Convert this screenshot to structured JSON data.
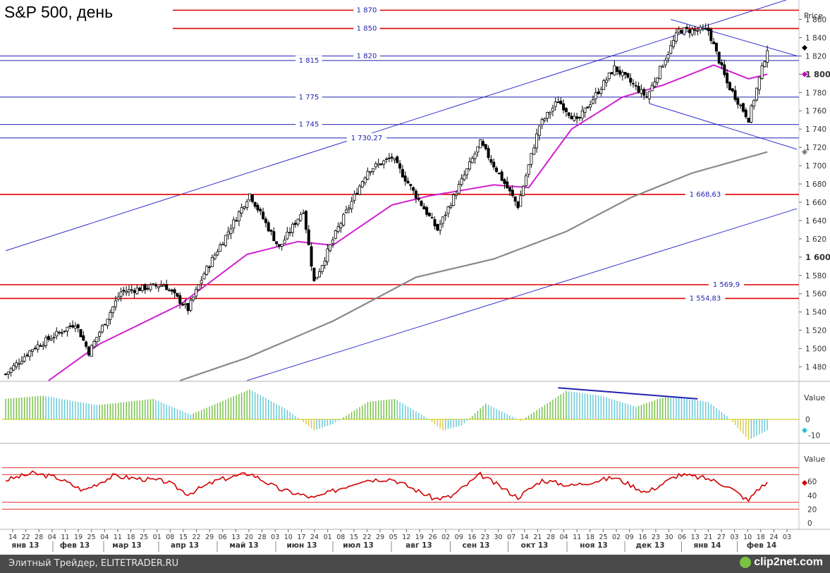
{
  "title": "S&P 500, день",
  "footer": {
    "source": "Элитный Трейдер, ELITETRADER.RU",
    "logo": "clip2net.com"
  },
  "chart_data": [
    {
      "type": "candlestick",
      "ylabel": "Price",
      "ylim": [
        1465,
        1875
      ],
      "y_ticks": [
        "1 480",
        "1 500",
        "1 520",
        "1 540",
        "1 560",
        "1 580",
        "1 600",
        "1 620",
        "1 640",
        "1 660",
        "1 680",
        "1 700",
        "1 720",
        "1 740",
        "1 760",
        "1 780",
        "1 800",
        "1 820",
        "1 840",
        "1 860"
      ],
      "y_ticks_bold": [
        "1 600",
        "1 800"
      ],
      "x_date_ticks": [
        "14",
        "22",
        "28",
        "04",
        "11",
        "19",
        "25",
        "04",
        "11",
        "18",
        "25",
        "01",
        "08",
        "15",
        "22",
        "29",
        "06",
        "13",
        "20",
        "28",
        "03",
        "10",
        "17",
        "24",
        "01",
        "08",
        "15",
        "22",
        "29",
        "05",
        "12",
        "19",
        "26",
        "02",
        "09",
        "16",
        "23",
        "30",
        "07",
        "14",
        "21",
        "28",
        "04",
        "11",
        "18",
        "25",
        "02",
        "09",
        "16",
        "23",
        "30",
        "06",
        "13",
        "21",
        "27",
        "03",
        "10",
        "18",
        "24",
        "03"
      ],
      "x_month_labels": [
        "янв 13",
        "фев 13",
        "мар 13",
        "апр 13",
        "май 13",
        "июн 13",
        "июл 13",
        "авг 13",
        "сен 13",
        "окт 13",
        "ноя 13",
        "дек 13",
        "янв 14",
        "фев 14"
      ],
      "close_anchors": [
        {
          "date": "2013-01-14",
          "value": 1472
        },
        {
          "date": "2013-01-28",
          "value": 1500
        },
        {
          "date": "2013-02-19",
          "value": 1528
        },
        {
          "date": "2013-02-26",
          "value": 1496
        },
        {
          "date": "2013-03-14",
          "value": 1562
        },
        {
          "date": "2013-04-05",
          "value": 1570
        },
        {
          "date": "2013-04-18",
          "value": 1543
        },
        {
          "date": "2013-04-26",
          "value": 1582
        },
        {
          "date": "2013-05-21",
          "value": 1669
        },
        {
          "date": "2013-06-05",
          "value": 1610
        },
        {
          "date": "2013-06-18",
          "value": 1652
        },
        {
          "date": "2013-06-24",
          "value": 1573
        },
        {
          "date": "2013-07-05",
          "value": 1632
        },
        {
          "date": "2013-07-22",
          "value": 1695
        },
        {
          "date": "2013-08-02",
          "value": 1709
        },
        {
          "date": "2013-08-27",
          "value": 1630
        },
        {
          "date": "2013-09-18",
          "value": 1725
        },
        {
          "date": "2013-10-08",
          "value": 1656
        },
        {
          "date": "2013-10-18",
          "value": 1744
        },
        {
          "date": "2013-10-29",
          "value": 1771
        },
        {
          "date": "2013-11-07",
          "value": 1748
        },
        {
          "date": "2013-11-27",
          "value": 1807
        },
        {
          "date": "2013-12-13",
          "value": 1775
        },
        {
          "date": "2013-12-31",
          "value": 1848
        },
        {
          "date": "2014-01-15",
          "value": 1848
        },
        {
          "date": "2014-01-24",
          "value": 1790
        },
        {
          "date": "2014-02-05",
          "value": 1751
        },
        {
          "date": "2014-02-14",
          "value": 1828
        }
      ],
      "ma_fast_anchors": [
        {
          "date": "2013-02-05",
          "value": 1465
        },
        {
          "date": "2013-03-04",
          "value": 1505
        },
        {
          "date": "2013-04-15",
          "value": 1548
        },
        {
          "date": "2013-05-20",
          "value": 1603
        },
        {
          "date": "2013-06-14",
          "value": 1617
        },
        {
          "date": "2013-07-03",
          "value": 1613
        },
        {
          "date": "2013-08-02",
          "value": 1657
        },
        {
          "date": "2013-08-22",
          "value": 1667
        },
        {
          "date": "2013-09-25",
          "value": 1679
        },
        {
          "date": "2013-10-14",
          "value": 1676
        },
        {
          "date": "2013-11-05",
          "value": 1740
        },
        {
          "date": "2013-12-02",
          "value": 1775
        },
        {
          "date": "2013-12-23",
          "value": 1788
        },
        {
          "date": "2014-01-17",
          "value": 1810
        },
        {
          "date": "2014-02-05",
          "value": 1795
        },
        {
          "date": "2014-02-14",
          "value": 1800
        }
      ],
      "ma_slow_anchors": [
        {
          "date": "2013-04-15",
          "value": 1465
        },
        {
          "date": "2013-05-20",
          "value": 1490
        },
        {
          "date": "2013-07-03",
          "value": 1530
        },
        {
          "date": "2013-08-15",
          "value": 1578
        },
        {
          "date": "2013-09-25",
          "value": 1598
        },
        {
          "date": "2013-11-01",
          "value": 1628
        },
        {
          "date": "2013-12-05",
          "value": 1665
        },
        {
          "date": "2014-01-07",
          "value": 1692
        },
        {
          "date": "2014-02-14",
          "value": 1715
        }
      ],
      "horizontal_levels": [
        {
          "value": 1870,
          "label": "1 870",
          "color": "#e00000"
        },
        {
          "value": 1850,
          "label": "1 850",
          "color": "#e00000"
        },
        {
          "value": 1820,
          "label": "1 820",
          "color": "#2222b0"
        },
        {
          "value": 1815,
          "label": "1 815",
          "color": "#2222b0"
        },
        {
          "value": 1775,
          "label": "1 775",
          "color": "#2222b0"
        },
        {
          "value": 1745,
          "label": "1 745",
          "color": "#2222b0"
        },
        {
          "value": 1730.27,
          "label": "1 730,27",
          "color": "#2222b0"
        },
        {
          "value": 1668.63,
          "label": "1 668,63",
          "color": "#e00000"
        },
        {
          "value": 1569.9,
          "label": "1 569,9",
          "color": "#e00000"
        },
        {
          "value": 1554.83,
          "label": "1 554,83",
          "color": "#e00000"
        }
      ],
      "trendlines": [
        {
          "from": {
            "date": "2013-01-14",
            "value": 1607
          },
          "to": {
            "date": "2014-03-03",
            "value": 1885
          }
        },
        {
          "from": {
            "date": "2013-05-20",
            "value": 1465
          },
          "to": {
            "date": "2014-03-03",
            "value": 1653
          }
        },
        {
          "from": {
            "date": "2013-12-26",
            "value": 1860
          },
          "to": {
            "date": "2014-03-03",
            "value": 1820
          }
        },
        {
          "from": {
            "date": "2013-12-16",
            "value": 1768
          },
          "to": {
            "date": "2014-03-03",
            "value": 1718
          }
        }
      ],
      "last_price_markers": [
        {
          "value": 1829,
          "color": "#000000"
        },
        {
          "value": 1800,
          "color": "#c000c0"
        },
        {
          "value": 1715,
          "color": "#808080"
        }
      ]
    },
    {
      "type": "histogram",
      "ylabel": "Value",
      "y_ticks": [
        "0",
        "-10"
      ],
      "ylim": [
        -13,
        21
      ],
      "anchors": [
        {
          "date": "2013-01-14",
          "value": 13
        },
        {
          "date": "2013-02-01",
          "value": 15
        },
        {
          "date": "2013-03-01",
          "value": 9
        },
        {
          "date": "2013-04-01",
          "value": 13
        },
        {
          "date": "2013-04-20",
          "value": 3
        },
        {
          "date": "2013-05-21",
          "value": 19
        },
        {
          "date": "2013-06-10",
          "value": 6
        },
        {
          "date": "2013-06-24",
          "value": -7
        },
        {
          "date": "2013-07-03",
          "value": -3
        },
        {
          "date": "2013-07-22",
          "value": 11
        },
        {
          "date": "2013-08-05",
          "value": 13
        },
        {
          "date": "2013-08-20",
          "value": 2
        },
        {
          "date": "2013-08-29",
          "value": -7
        },
        {
          "date": "2013-09-09",
          "value": -4
        },
        {
          "date": "2013-09-20",
          "value": 10
        },
        {
          "date": "2013-10-09",
          "value": -1
        },
        {
          "date": "2013-10-21",
          "value": 8
        },
        {
          "date": "2013-11-01",
          "value": 18
        },
        {
          "date": "2013-11-20",
          "value": 15
        },
        {
          "date": "2013-12-09",
          "value": 8
        },
        {
          "date": "2013-12-25",
          "value": 15
        },
        {
          "date": "2014-01-15",
          "value": 11
        },
        {
          "date": "2014-01-24",
          "value": 2
        },
        {
          "date": "2014-02-05",
          "value": -13
        },
        {
          "date": "2014-02-14",
          "value": -7
        }
      ],
      "trendline": {
        "from": {
          "date": "2013-10-29",
          "value": 20
        },
        "to": {
          "date": "2014-01-09",
          "value": 13
        }
      },
      "last_value_marker": {
        "value": -7,
        "color": "#30c0d0"
      }
    },
    {
      "type": "line",
      "ylabel": "Value",
      "y_ticks": [
        "60",
        "40",
        "20",
        "0"
      ],
      "ylim": [
        -2,
        100
      ],
      "levels": [
        80,
        70,
        30,
        20
      ],
      "anchors": [
        {
          "date": "2013-01-14",
          "value": 62
        },
        {
          "date": "2013-01-28",
          "value": 72
        },
        {
          "date": "2013-02-08",
          "value": 66
        },
        {
          "date": "2013-02-22",
          "value": 47
        },
        {
          "date": "2013-03-11",
          "value": 68
        },
        {
          "date": "2013-04-08",
          "value": 60
        },
        {
          "date": "2013-04-18",
          "value": 42
        },
        {
          "date": "2013-05-03",
          "value": 62
        },
        {
          "date": "2013-05-21",
          "value": 72
        },
        {
          "date": "2013-06-05",
          "value": 49
        },
        {
          "date": "2013-06-24",
          "value": 36
        },
        {
          "date": "2013-07-18",
          "value": 62
        },
        {
          "date": "2013-08-02",
          "value": 64
        },
        {
          "date": "2013-08-26",
          "value": 35
        },
        {
          "date": "2013-09-03",
          "value": 38
        },
        {
          "date": "2013-09-18",
          "value": 70
        },
        {
          "date": "2013-10-08",
          "value": 37
        },
        {
          "date": "2013-10-21",
          "value": 62
        },
        {
          "date": "2013-11-05",
          "value": 54
        },
        {
          "date": "2013-11-27",
          "value": 66
        },
        {
          "date": "2013-12-13",
          "value": 44
        },
        {
          "date": "2013-12-31",
          "value": 70
        },
        {
          "date": "2014-01-15",
          "value": 64
        },
        {
          "date": "2014-01-24",
          "value": 54
        },
        {
          "date": "2014-02-05",
          "value": 32
        },
        {
          "date": "2014-02-10",
          "value": 48
        },
        {
          "date": "2014-02-14",
          "value": 58
        }
      ],
      "last_value_marker": {
        "value": 58,
        "color": "#d00000"
      }
    }
  ]
}
